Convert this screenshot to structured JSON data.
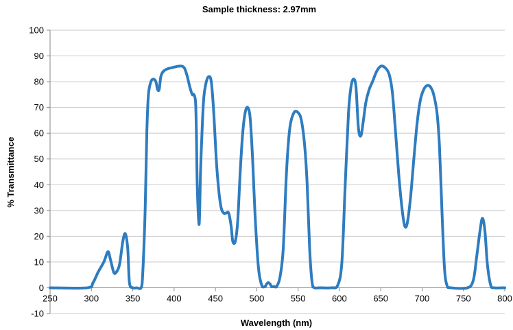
{
  "chart_data": {
    "type": "line",
    "title": "Sample thickness: 2.97mm",
    "xlabel": "Wavelength (nm)",
    "ylabel": "% Transmittance",
    "xlim": [
      250,
      800
    ],
    "ylim": [
      -10,
      100
    ],
    "x_ticks": [
      250,
      300,
      350,
      400,
      450,
      500,
      550,
      600,
      650,
      700,
      750,
      800
    ],
    "x_tick_labels": [
      "250",
      "300",
      "350",
      "400",
      "450",
      "500",
      "550",
      "600",
      "650",
      "700",
      "750",
      "800"
    ],
    "y_ticks": [
      -10,
      0,
      10,
      20,
      30,
      40,
      50,
      60,
      70,
      80,
      90,
      100
    ],
    "y_tick_labels": [
      "-10",
      "0",
      "10",
      "20",
      "30",
      "40",
      "50",
      "60",
      "70",
      "80",
      "90",
      "100"
    ],
    "grid": "horizontal",
    "legend": "none",
    "colors": {
      "series": "#2e7cc0",
      "grid": "#c8c8c8",
      "axis": "#868686"
    },
    "series": [
      {
        "x": [
          250,
          295,
          302,
          308,
          315,
          320,
          323,
          327,
          330,
          334,
          338,
          341,
          344,
          346,
          350,
          355,
          360,
          362,
          365,
          367,
          369,
          372,
          375,
          378,
          380,
          382,
          384,
          387,
          392,
          398,
          405,
          410,
          413,
          416,
          419,
          422,
          424,
          426,
          427,
          428,
          430,
          431,
          432,
          434,
          436,
          439,
          442,
          445,
          448,
          451,
          454,
          457,
          460,
          463,
          466,
          469,
          471,
          474,
          477,
          480,
          483,
          486,
          489,
          492,
          495,
          498,
          502,
          506,
          510,
          512,
          514,
          516,
          518,
          521,
          524,
          528,
          532,
          536,
          540,
          545,
          550,
          554,
          558,
          561,
          564,
          567,
          570,
          575,
          590,
          598,
          603,
          607,
          611,
          614,
          617,
          620,
          623,
          626,
          629,
          632,
          636,
          640,
          645,
          650,
          655,
          660,
          664,
          668,
          672,
          676,
          679,
          682,
          686,
          690,
          694,
          698,
          702,
          706,
          710,
          714,
          718,
          721,
          724,
          727,
          730,
          735,
          755,
          762,
          766,
          770,
          773,
          776,
          779,
          783,
          787,
          800
        ],
        "y": [
          0,
          0,
          2,
          6,
          10,
          14,
          11,
          6,
          6,
          9,
          18,
          21,
          15,
          2,
          0,
          0,
          0,
          5,
          30,
          60,
          75,
          80,
          81,
          80,
          77,
          77,
          82,
          84,
          85,
          85.5,
          86,
          86,
          85,
          82,
          78,
          75,
          75,
          72,
          60,
          40,
          25,
          30,
          45,
          62,
          74,
          80,
          82,
          80,
          68,
          50,
          38,
          31,
          29,
          29,
          29,
          24,
          18,
          18,
          26,
          45,
          60,
          68,
          70,
          66,
          50,
          28,
          8,
          1,
          0.5,
          1.5,
          2,
          1.5,
          0.5,
          0.5,
          0.5,
          4,
          15,
          45,
          62,
          68,
          68,
          65,
          55,
          40,
          15,
          2,
          0,
          0,
          0,
          1,
          10,
          40,
          68,
          78,
          81,
          78,
          62,
          59,
          65,
          72,
          77,
          80,
          84,
          86,
          85.5,
          83,
          76,
          60,
          43,
          30,
          24,
          25,
          35,
          50,
          64,
          73,
          77,
          78.5,
          78,
          75,
          68,
          55,
          30,
          8,
          1,
          0,
          0,
          3,
          12,
          22,
          27,
          22,
          9,
          1,
          0,
          0
        ]
      }
    ]
  }
}
